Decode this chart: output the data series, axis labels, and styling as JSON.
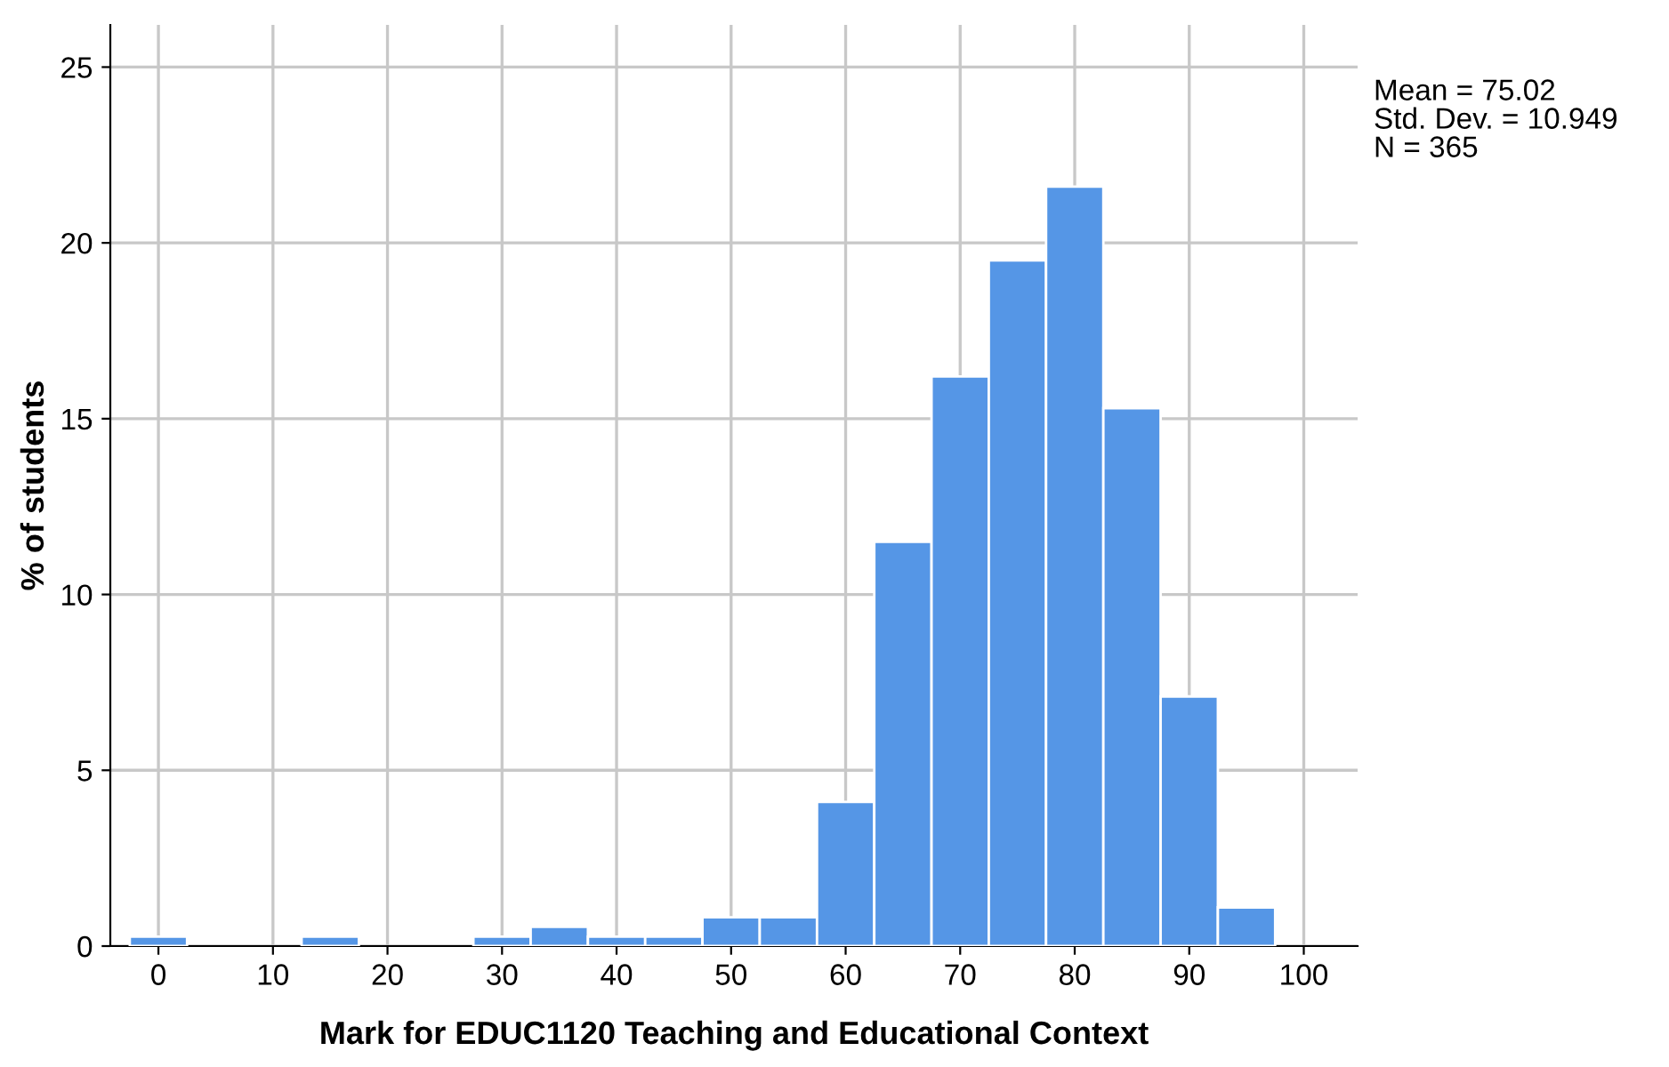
{
  "chart_data": {
    "type": "histogram",
    "xlabel": "Mark for EDUC1120 Teaching and Educational Context",
    "ylabel": "% of students",
    "bins": [
      -2.5,
      2.5,
      7.5,
      12.5,
      17.5,
      22.5,
      27.5,
      32.5,
      37.5,
      42.5,
      47.5,
      52.5,
      57.5,
      62.5,
      67.5,
      72.5,
      77.5,
      82.5,
      87.5,
      92.5,
      97.5
    ],
    "values": [
      0.27,
      0,
      0,
      0.27,
      0,
      0,
      0.27,
      0.55,
      0.27,
      0.27,
      0.82,
      0.82,
      4.1,
      11.5,
      16.2,
      19.5,
      21.6,
      15.3,
      7.1,
      1.1
    ],
    "color": "#5596e6",
    "xlim": [
      -4.2,
      104.7
    ],
    "ylim": [
      0,
      26.2
    ],
    "xticks": [
      0,
      10,
      20,
      30,
      40,
      50,
      60,
      70,
      80,
      90,
      100
    ],
    "yticks": [
      0,
      5,
      10,
      15,
      20,
      25
    ],
    "grid": true,
    "legend": false,
    "annotations": [
      "Mean = 75.02",
      "Std. Dev. = 10.949",
      "N = 365"
    ]
  }
}
